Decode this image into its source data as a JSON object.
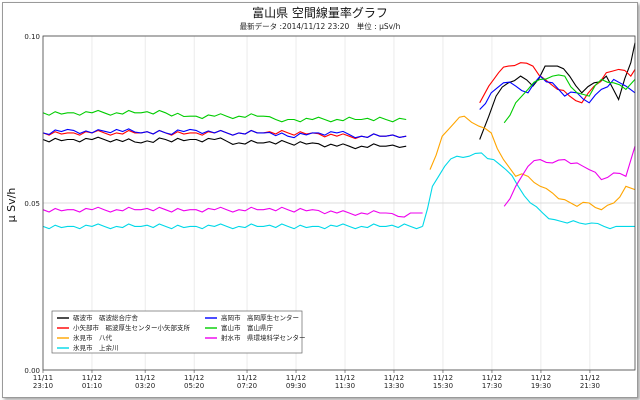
{
  "chart_data": {
    "type": "line",
    "title": "富山県 空間線量率グラフ",
    "subtitle": "最新データ :2014/11/12 23:20　単位 : μSv/h",
    "ylabel": "μ Sv/h",
    "ylim": [
      0,
      0.1
    ],
    "yticks": [
      "0.00",
      "0.05",
      "0.10"
    ],
    "xlim_hours": [
      0,
      24.17
    ],
    "xticks": [
      {
        "h": 0,
        "date": "11/11",
        "time": "23:10"
      },
      {
        "h": 2,
        "date": "11/12",
        "time": "01:10"
      },
      {
        "h": 4.17,
        "date": "11/12",
        "time": "03:20"
      },
      {
        "h": 6.17,
        "date": "11/12",
        "time": "05:20"
      },
      {
        "h": 8.33,
        "date": "11/12",
        "time": "07:20"
      },
      {
        "h": 10.33,
        "date": "11/12",
        "time": "09:30"
      },
      {
        "h": 12.33,
        "date": "11/12",
        "time": "11:30"
      },
      {
        "h": 14.33,
        "date": "11/12",
        "time": "13:30"
      },
      {
        "h": 16.33,
        "date": "11/12",
        "time": "15:30"
      },
      {
        "h": 18.33,
        "date": "11/12",
        "time": "17:30"
      },
      {
        "h": 20.33,
        "date": "11/12",
        "time": "19:30"
      },
      {
        "h": 22.33,
        "date": "11/12",
        "time": "21:30"
      }
    ],
    "grid": true,
    "legend_position": "bottom-left",
    "series": [
      {
        "name": "砺波市　砺波総合庁舎",
        "color": "#000000",
        "segments": [
          {
            "x": [
              0,
              1,
              2,
              3,
              4,
              5,
              6,
              7,
              8,
              9,
              10,
              11,
              12,
              13,
              14,
              14.83
            ],
            "y": [
              0.069,
              0.069,
              0.069,
              0.069,
              0.068,
              0.069,
              0.069,
              0.069,
              0.068,
              0.068,
              0.068,
              0.068,
              0.067,
              0.067,
              0.067,
              0.067
            ]
          },
          {
            "x": [
              17.83,
              18.2,
              18.5,
              19,
              19.5,
              20,
              20.5,
              21,
              21.5,
              22,
              22.5,
              23,
              23.5,
              24,
              24.17
            ],
            "y": [
              0.069,
              0.076,
              0.082,
              0.086,
              0.088,
              0.085,
              0.091,
              0.091,
              0.088,
              0.083,
              0.086,
              0.088,
              0.081,
              0.092,
              0.098
            ]
          }
        ]
      },
      {
        "name": "小矢部市　砺波厚生センター小矢部支所",
        "color": "#ff0000",
        "segments": [
          {
            "x": [
              0,
              1,
              2,
              3,
              4,
              5,
              6,
              7,
              8,
              9,
              10,
              11,
              12,
              13,
              14,
              14.83
            ],
            "y": [
              0.071,
              0.071,
              0.071,
              0.071,
              0.071,
              0.071,
              0.071,
              0.071,
              0.071,
              0.071,
              0.071,
              0.071,
              0.07,
              0.07,
              0.07,
              0.07
            ]
          },
          {
            "x": [
              17.83,
              18.2,
              18.6,
              19,
              19.5,
              20,
              20.5,
              21,
              21.5,
              22,
              22.5,
              23,
              23.5,
              24,
              24.17
            ],
            "y": [
              0.08,
              0.085,
              0.089,
              0.091,
              0.092,
              0.091,
              0.087,
              0.084,
              0.082,
              0.08,
              0.085,
              0.089,
              0.09,
              0.088,
              0.09
            ]
          }
        ]
      },
      {
        "name": "氷見市　八代",
        "color": "#ffa500",
        "segments": [
          {
            "x": [
              15.8,
              16.3,
              16.8,
              17.2,
              17.8,
              18.3,
              18.8,
              19.3,
              19.8,
              20.3,
              20.8,
              21.3,
              21.8,
              22.3,
              22.8,
              23.3,
              23.8,
              24.17
            ],
            "y": [
              0.06,
              0.07,
              0.074,
              0.076,
              0.073,
              0.071,
              0.063,
              0.058,
              0.058,
              0.055,
              0.053,
              0.051,
              0.049,
              0.05,
              0.048,
              0.05,
              0.055,
              0.054
            ]
          }
        ]
      },
      {
        "name": "氷見市　上余川",
        "color": "#00d8e8",
        "segments": [
          {
            "x": [
              0,
              1,
              2,
              3,
              4,
              5,
              6,
              7,
              8,
              9,
              10,
              11,
              12,
              13,
              14,
              15,
              15.5
            ],
            "y": [
              0.043,
              0.043,
              0.043,
              0.043,
              0.043,
              0.043,
              0.043,
              0.043,
              0.043,
              0.043,
              0.043,
              0.043,
              0.043,
              0.043,
              0.043,
              0.043,
              0.043
            ]
          },
          {
            "x": [
              15.5,
              15.9,
              16.4,
              16.9,
              17.4,
              17.9,
              18.4,
              18.9,
              19.4,
              19.9,
              20.4,
              20.9,
              21.4,
              21.9,
              22.4,
              22.9,
              23.4,
              23.9,
              24.17
            ],
            "y": [
              0.043,
              0.055,
              0.061,
              0.064,
              0.064,
              0.065,
              0.063,
              0.06,
              0.055,
              0.05,
              0.047,
              0.045,
              0.044,
              0.044,
              0.044,
              0.043,
              0.043,
              0.043,
              0.043
            ]
          }
        ]
      },
      {
        "name": "高岡市　高岡厚生センター",
        "color": "#0000ff",
        "segments": [
          {
            "x": [
              0,
              1,
              2,
              3,
              4,
              5,
              6,
              7,
              8,
              9,
              10,
              11,
              12,
              13,
              14,
              14.83
            ],
            "y": [
              0.071,
              0.072,
              0.071,
              0.072,
              0.071,
              0.071,
              0.072,
              0.071,
              0.071,
              0.071,
              0.07,
              0.071,
              0.071,
              0.07,
              0.07,
              0.07
            ]
          },
          {
            "x": [
              17.83,
              18.3,
              18.8,
              19.3,
              19.8,
              20.3,
              20.8,
              21.3,
              21.8,
              22.3,
              22.8,
              23.3,
              23.8,
              24.17
            ],
            "y": [
              0.078,
              0.083,
              0.086,
              0.085,
              0.083,
              0.088,
              0.086,
              0.082,
              0.083,
              0.08,
              0.084,
              0.087,
              0.085,
              0.083
            ]
          }
        ]
      },
      {
        "name": "富山市　富山県庁",
        "color": "#00cc00",
        "segments": [
          {
            "x": [
              0,
              1,
              2,
              3,
              4,
              5,
              6,
              7,
              8,
              9,
              9.5,
              10,
              11,
              12,
              13,
              14,
              14.83
            ],
            "y": [
              0.077,
              0.077,
              0.077,
              0.077,
              0.077,
              0.077,
              0.076,
              0.076,
              0.076,
              0.076,
              0.075,
              0.075,
              0.075,
              0.075,
              0.075,
              0.075,
              0.075
            ]
          },
          {
            "x": [
              18.83,
              19.3,
              19.8,
              20.3,
              20.8,
              21.3,
              21.8,
              22.3,
              22.8,
              23.3,
              23.8,
              24.17
            ],
            "y": [
              0.074,
              0.08,
              0.084,
              0.087,
              0.088,
              0.088,
              0.083,
              0.082,
              0.087,
              0.086,
              0.084,
              0.087
            ]
          }
        ]
      },
      {
        "name": "射水市　県環境科学センター",
        "color": "#ee00ee",
        "segments": [
          {
            "x": [
              0,
              1,
              2,
              3,
              4,
              5,
              6,
              7,
              8,
              9,
              10,
              11,
              12,
              13,
              14,
              14.5,
              15,
              15.5
            ],
            "y": [
              0.048,
              0.048,
              0.048,
              0.048,
              0.048,
              0.048,
              0.048,
              0.048,
              0.048,
              0.048,
              0.048,
              0.048,
              0.047,
              0.047,
              0.047,
              0.046,
              0.047,
              0.047
            ]
          },
          {
            "x": [
              18.83,
              19.3,
              19.8,
              20.3,
              20.8,
              21.3,
              21.8,
              22.3,
              22.8,
              23.3,
              23.8,
              24.17
            ],
            "y": [
              0.049,
              0.055,
              0.061,
              0.063,
              0.062,
              0.063,
              0.062,
              0.06,
              0.057,
              0.059,
              0.058,
              0.067
            ]
          }
        ]
      }
    ]
  }
}
